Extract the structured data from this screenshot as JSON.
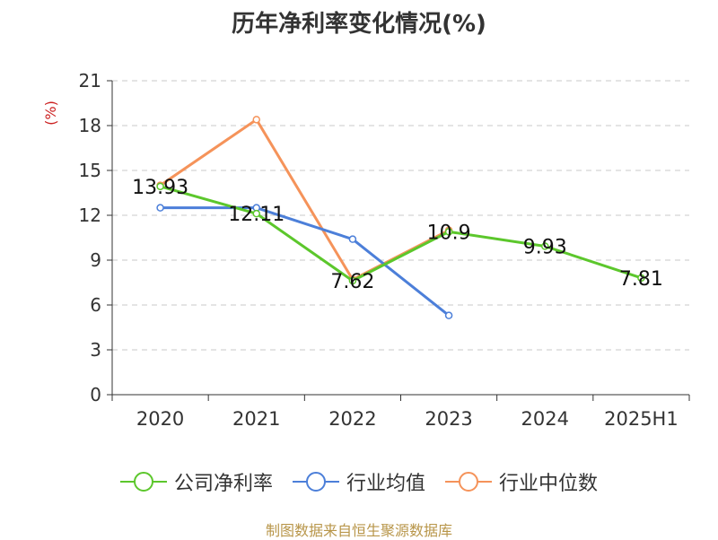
{
  "title": "历年净利率变化情况(%)",
  "source": "制图数据来自恒生聚源数据库",
  "chart_data": {
    "type": "line",
    "title": "历年净利率变化情况(%)",
    "ylabel": "(%)",
    "ylim": [
      0,
      21
    ],
    "yticks": [
      0,
      3,
      6,
      9,
      12,
      15,
      18,
      21
    ],
    "grid": true,
    "legend_position": "bottom",
    "categories": [
      "2020",
      "2021",
      "2022",
      "2023",
      "2024",
      "2025H1"
    ],
    "series": [
      {
        "name": "公司净利率",
        "color": "#5cc72c",
        "values": [
          13.93,
          12.11,
          7.62,
          10.9,
          9.93,
          7.81
        ],
        "labels": [
          "13.93",
          "12.11",
          "7.62",
          "10.9",
          "9.93",
          "7.81"
        ]
      },
      {
        "name": "行业均值",
        "color": "#4c7fd9",
        "values": [
          12.5,
          12.5,
          10.4,
          5.3,
          null,
          null
        ]
      },
      {
        "name": "行业中位数",
        "color": "#f5935a",
        "values": [
          14.0,
          18.4,
          7.7,
          11.0,
          null,
          null
        ]
      }
    ]
  }
}
